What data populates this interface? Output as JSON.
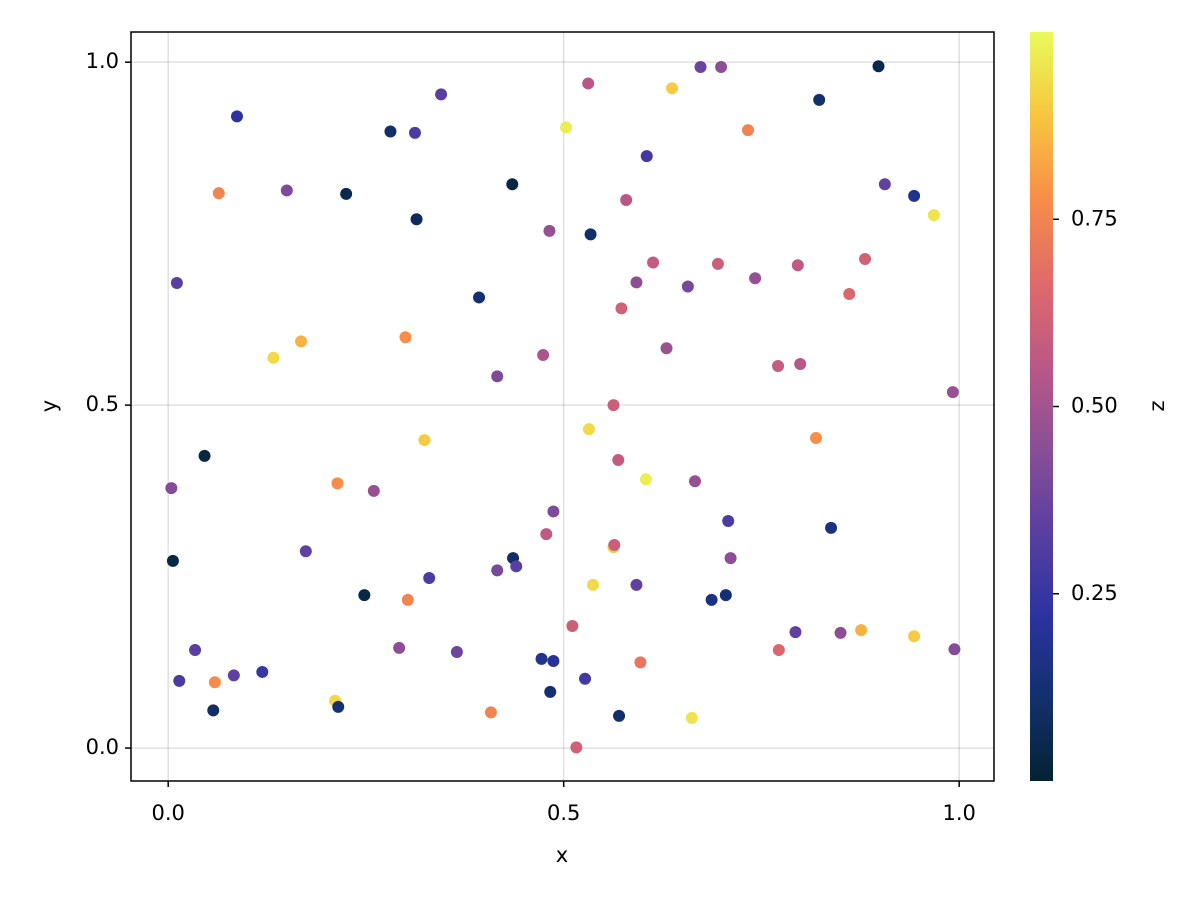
{
  "chart_data": {
    "type": "scatter",
    "x_label": "x",
    "y_label": "y",
    "colorbar_label": "z",
    "x": [
      0.087,
      0.345,
      0.281,
      0.312,
      0.531,
      0.637,
      0.673,
      0.699,
      0.898,
      0.823,
      0.503,
      0.733,
      0.605,
      0.906,
      0.943,
      0.968,
      0.064,
      0.15,
      0.225,
      0.435,
      0.314,
      0.579,
      0.482,
      0.534,
      0.011,
      0.393,
      0.613,
      0.695,
      0.592,
      0.657,
      0.742,
      0.796,
      0.881,
      0.861,
      0.573,
      0.133,
      0.168,
      0.3,
      0.474,
      0.416,
      0.63,
      0.771,
      0.799,
      0.992,
      0.563,
      0.532,
      0.324,
      0.046,
      0.819,
      0.569,
      0.604,
      0.004,
      0.214,
      0.26,
      0.666,
      0.487,
      0.708,
      0.478,
      0.838,
      0.563,
      0.564,
      0.006,
      0.174,
      0.436,
      0.44,
      0.416,
      0.711,
      0.33,
      0.537,
      0.592,
      0.248,
      0.303,
      0.687,
      0.705,
      0.511,
      0.793,
      0.85,
      0.876,
      0.943,
      0.034,
      0.292,
      0.365,
      0.772,
      0.994,
      0.472,
      0.487,
      0.597,
      0.014,
      0.059,
      0.083,
      0.119,
      0.527,
      0.483,
      0.057,
      0.211,
      0.215,
      0.408,
      0.57,
      0.662,
      0.516
    ],
    "y": [
      0.921,
      0.953,
      0.899,
      0.897,
      0.969,
      0.962,
      0.993,
      0.993,
      0.994,
      0.945,
      0.905,
      0.901,
      0.863,
      0.822,
      0.805,
      0.777,
      0.809,
      0.813,
      0.808,
      0.822,
      0.771,
      0.799,
      0.754,
      0.749,
      0.678,
      0.657,
      0.708,
      0.706,
      0.679,
      0.673,
      0.685,
      0.704,
      0.713,
      0.662,
      0.641,
      0.569,
      0.593,
      0.599,
      0.573,
      0.542,
      0.583,
      0.557,
      0.56,
      0.519,
      0.5,
      0.465,
      0.449,
      0.426,
      0.452,
      0.42,
      0.392,
      0.379,
      0.386,
      0.375,
      0.389,
      0.345,
      0.331,
      0.312,
      0.321,
      0.293,
      0.296,
      0.273,
      0.287,
      0.277,
      0.265,
      0.259,
      0.277,
      0.248,
      0.238,
      0.238,
      0.223,
      0.216,
      0.216,
      0.223,
      0.178,
      0.169,
      0.168,
      0.172,
      0.163,
      0.143,
      0.146,
      0.14,
      0.143,
      0.144,
      0.13,
      0.127,
      0.125,
      0.098,
      0.096,
      0.106,
      0.111,
      0.101,
      0.082,
      0.055,
      0.069,
      0.06,
      0.052,
      0.047,
      0.044,
      0.001
    ],
    "z": [
      0.22,
      0.33,
      0.1,
      0.3,
      0.55,
      0.9,
      0.37,
      0.45,
      0.05,
      0.1,
      0.97,
      0.75,
      0.28,
      0.35,
      0.17,
      0.95,
      0.75,
      0.42,
      0.05,
      0.03,
      0.07,
      0.55,
      0.47,
      0.1,
      0.33,
      0.12,
      0.58,
      0.6,
      0.45,
      0.4,
      0.47,
      0.57,
      0.62,
      0.65,
      0.62,
      0.93,
      0.85,
      0.78,
      0.52,
      0.42,
      0.48,
      0.58,
      0.55,
      0.47,
      0.6,
      0.93,
      0.9,
      0.03,
      0.78,
      0.58,
      0.97,
      0.43,
      0.77,
      0.47,
      0.47,
      0.42,
      0.3,
      0.57,
      0.15,
      0.9,
      0.6,
      0.04,
      0.35,
      0.1,
      0.33,
      0.4,
      0.45,
      0.3,
      0.93,
      0.35,
      0.04,
      0.75,
      0.15,
      0.12,
      0.6,
      0.35,
      0.45,
      0.85,
      0.9,
      0.33,
      0.45,
      0.38,
      0.65,
      0.43,
      0.18,
      0.2,
      0.7,
      0.3,
      0.77,
      0.35,
      0.25,
      0.28,
      0.12,
      0.1,
      0.92,
      0.12,
      0.75,
      0.1,
      0.95,
      0.62
    ],
    "xlim": [
      -0.047,
      1.044
    ],
    "ylim": [
      -0.048,
      1.044
    ],
    "zlim": [
      0,
      1
    ],
    "xticks": [
      {
        "value": 0,
        "label": "0.0"
      },
      0.5,
      {
        "value": 1,
        "label": "1.0"
      }
    ],
    "yticks": [
      {
        "value": 0,
        "label": "0.0"
      },
      0.5,
      {
        "value": 1,
        "label": "1.0"
      }
    ],
    "zticks": [
      0.25,
      {
        "value": 0.5,
        "label": "0.50"
      },
      0.75
    ],
    "grid": true,
    "colormap": [
      "#042333",
      "#13306e",
      "#2c33a0",
      "#5a3fa0",
      "#8a4f96",
      "#bb5886",
      "#e06a6a",
      "#f88d48",
      "#f7c640",
      "#e8fa5b"
    ]
  }
}
